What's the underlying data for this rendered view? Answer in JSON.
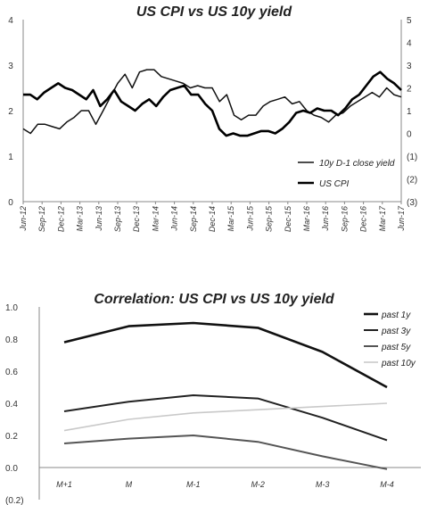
{
  "chart_data": [
    {
      "type": "line",
      "title": "US CPI vs US 10y yield",
      "x_ticks": [
        "Jun-12",
        "Sep-12",
        "Dec-12",
        "Mar-13",
        "Jun-13",
        "Sep-13",
        "Dec-13",
        "Mar-14",
        "Jun-14",
        "Sep-14",
        "Dec-14",
        "Mar-15",
        "Jun-15",
        "Sep-15",
        "Dec-15",
        "Mar-16",
        "Jun-16",
        "Sep-16",
        "Dec-16",
        "Mar-17",
        "Jun-17"
      ],
      "y_left": {
        "ticks": [
          "0",
          "1",
          "2",
          "3",
          "4"
        ],
        "ylim": [
          0,
          4
        ]
      },
      "y_right": {
        "ticks": [
          "(3)",
          "(2)",
          "(1)",
          "0",
          "1",
          "2",
          "3",
          "4",
          "5"
        ],
        "ylim": [
          -3,
          5
        ]
      },
      "legend_position": "lower-right",
      "series": [
        {
          "name": "10y D-1 close yield",
          "axis": "left",
          "color": "#111111",
          "stroke_width": 1.5,
          "values": [
            1.6,
            1.5,
            1.7,
            1.7,
            1.65,
            1.6,
            1.75,
            1.85,
            2.0,
            2.0,
            1.7,
            2.0,
            2.3,
            2.6,
            2.8,
            2.5,
            2.85,
            2.9,
            2.9,
            2.75,
            2.7,
            2.65,
            2.6,
            2.5,
            2.55,
            2.5,
            2.5,
            2.2,
            2.35,
            1.9,
            1.8,
            1.9,
            1.9,
            2.1,
            2.2,
            2.25,
            2.3,
            2.15,
            2.2,
            2.0,
            1.9,
            1.85,
            1.75,
            1.9,
            1.95,
            2.1,
            2.2,
            2.3,
            2.4,
            2.3,
            2.5,
            2.35,
            2.3
          ]
        },
        {
          "name": "US CPI",
          "axis": "right",
          "color": "#000000",
          "stroke_width": 2.6,
          "values": [
            1.7,
            1.7,
            1.5,
            1.8,
            2.0,
            2.2,
            2.0,
            1.9,
            1.7,
            1.5,
            1.9,
            1.2,
            1.5,
            1.9,
            1.4,
            1.2,
            1.0,
            1.3,
            1.5,
            1.2,
            1.6,
            1.9,
            2.0,
            2.1,
            1.7,
            1.7,
            1.3,
            1.0,
            0.2,
            -0.1,
            0.0,
            -0.1,
            -0.1,
            0.0,
            0.1,
            0.1,
            0.0,
            0.2,
            0.5,
            0.9,
            1.0,
            0.9,
            1.1,
            1.0,
            1.0,
            0.8,
            1.1,
            1.5,
            1.7,
            2.1,
            2.5,
            2.7,
            2.4,
            2.2,
            1.9
          ]
        }
      ]
    },
    {
      "type": "line",
      "title": "Correlation: US CPI vs US 10y yield",
      "categories": [
        "M+1",
        "M",
        "M-1",
        "M-2",
        "M-3",
        "M-4"
      ],
      "y_ticks": [
        "1.0",
        "0.8",
        "0.6",
        "0.4",
        "0.2",
        "0.0",
        "(0.2)"
      ],
      "ylim": [
        -0.2,
        1.0
      ],
      "legend_position": "top-right",
      "series": [
        {
          "name": "past 1y",
          "color": "#111111",
          "stroke_width": 2.6,
          "values": [
            0.78,
            0.88,
            0.9,
            0.87,
            0.72,
            0.5
          ]
        },
        {
          "name": "past 3y",
          "color": "#222222",
          "stroke_width": 2.0,
          "values": [
            0.35,
            0.41,
            0.45,
            0.43,
            0.31,
            0.17
          ]
        },
        {
          "name": "past 5y",
          "color": "#555555",
          "stroke_width": 2.0,
          "values": [
            0.15,
            0.18,
            0.2,
            0.16,
            0.07,
            -0.01
          ]
        },
        {
          "name": "past 10y",
          "color": "#c9c9c9",
          "stroke_width": 1.6,
          "values": [
            0.23,
            0.3,
            0.34,
            0.36,
            0.38,
            0.4
          ]
        }
      ]
    }
  ]
}
